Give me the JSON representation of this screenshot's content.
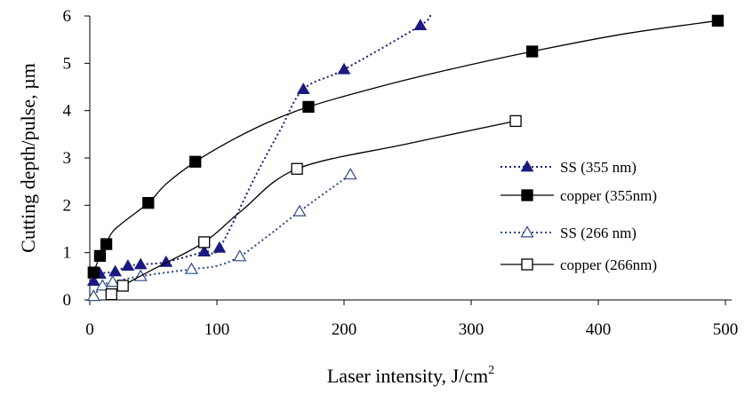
{
  "chart_data": {
    "type": "scatter",
    "xlabel": "Laser intensity, J/cm",
    "xlabel_superscript": "2",
    "ylabel": "Cutting depth/pulse,  µm",
    "xlim": [
      0,
      500
    ],
    "ylim": [
      0,
      6
    ],
    "xticks": [
      "0",
      "100",
      "200",
      "300",
      "400",
      "500"
    ],
    "yticks": [
      "0",
      "1",
      "2",
      "3",
      "4",
      "5",
      "6"
    ],
    "grid": false,
    "legend_position": "right",
    "series": [
      {
        "name": "SS (355 nm)",
        "marker": "triangle-filled",
        "line": "dotted",
        "color": "#1a1a80",
        "points": [
          [
            3,
            0.4
          ],
          [
            8,
            0.55
          ],
          [
            20,
            0.6
          ],
          [
            30,
            0.72
          ],
          [
            40,
            0.75
          ],
          [
            60,
            0.8
          ],
          [
            90,
            1.02
          ],
          [
            102,
            1.1
          ],
          [
            168,
            4.45
          ],
          [
            200,
            4.87
          ],
          [
            260,
            5.8
          ]
        ],
        "line_points": [
          [
            3,
            0.4
          ],
          [
            8,
            0.55
          ],
          [
            20,
            0.6
          ],
          [
            30,
            0.72
          ],
          [
            40,
            0.75
          ],
          [
            60,
            0.8
          ],
          [
            90,
            1.02
          ],
          [
            102,
            1.1
          ],
          [
            130,
            2.6
          ],
          [
            150,
            3.6
          ],
          [
            168,
            4.45
          ],
          [
            200,
            4.87
          ],
          [
            260,
            5.8
          ],
          [
            268,
            6.05
          ]
        ]
      },
      {
        "name": "copper (355nm)",
        "marker": "square-filled",
        "line": "solid",
        "color": "#000000",
        "points": [
          [
            3,
            0.58
          ],
          [
            8,
            0.93
          ],
          [
            13,
            1.18
          ],
          [
            46,
            2.05
          ],
          [
            83,
            2.92
          ],
          [
            172,
            4.08
          ],
          [
            348,
            5.25
          ],
          [
            494,
            5.9
          ]
        ],
        "line_points": [
          [
            3,
            0.58
          ],
          [
            8,
            0.93
          ],
          [
            13,
            1.18
          ],
          [
            20,
            1.5
          ],
          [
            46,
            2.05
          ],
          [
            60,
            2.45
          ],
          [
            83,
            2.92
          ],
          [
            110,
            3.35
          ],
          [
            140,
            3.75
          ],
          [
            172,
            4.08
          ],
          [
            220,
            4.45
          ],
          [
            280,
            4.85
          ],
          [
            348,
            5.25
          ],
          [
            420,
            5.62
          ],
          [
            494,
            5.9
          ]
        ]
      },
      {
        "name": "SS (266 nm)",
        "marker": "triangle-open",
        "line": "dotted",
        "color": "#2e4a86",
        "points": [
          [
            3,
            0.08
          ],
          [
            10,
            0.3
          ],
          [
            18,
            0.38
          ],
          [
            40,
            0.5
          ],
          [
            80,
            0.65
          ],
          [
            118,
            0.92
          ],
          [
            165,
            1.87
          ],
          [
            205,
            2.65
          ]
        ],
        "line_points": [
          [
            3,
            0.08
          ],
          [
            10,
            0.3
          ],
          [
            18,
            0.38
          ],
          [
            40,
            0.5
          ],
          [
            80,
            0.65
          ],
          [
            100,
            0.72
          ],
          [
            118,
            0.92
          ],
          [
            140,
            1.35
          ],
          [
            165,
            1.87
          ],
          [
            205,
            2.65
          ]
        ]
      },
      {
        "name": "copper (266nm)",
        "marker": "square-open",
        "line": "solid",
        "color": "#000000",
        "points": [
          [
            17,
            0.12
          ],
          [
            26,
            0.3
          ],
          [
            90,
            1.22
          ],
          [
            163,
            2.77
          ],
          [
            335,
            3.78
          ]
        ],
        "line_points": [
          [
            17,
            0.12
          ],
          [
            26,
            0.3
          ],
          [
            50,
            0.65
          ],
          [
            90,
            1.22
          ],
          [
            120,
            1.9
          ],
          [
            163,
            2.77
          ],
          [
            250,
            3.3
          ],
          [
            335,
            3.78
          ]
        ]
      }
    ]
  }
}
